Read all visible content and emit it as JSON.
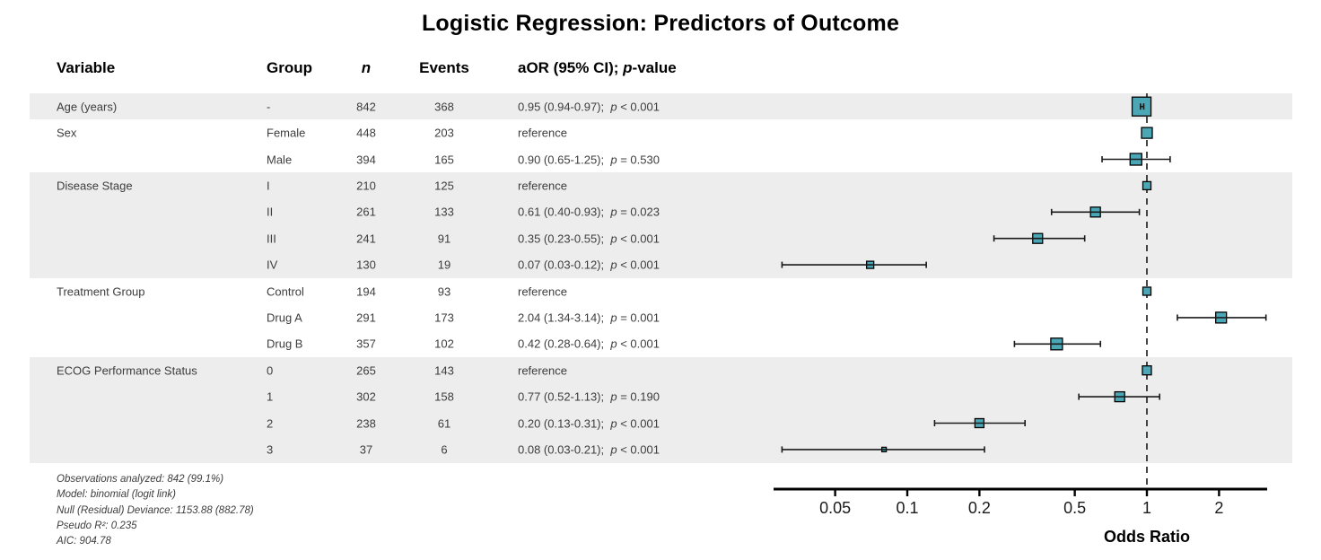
{
  "title": "Logistic Regression: Predictors of Outcome",
  "colors": {
    "marker_fill": "#4ba6b6",
    "marker_stroke": "#000000",
    "errorbar": "#1a1a1a",
    "ref_line": "#1a1a1a",
    "band": "#ededed",
    "axis": "#000000",
    "text": "#3d3d3d"
  },
  "table_headers": {
    "variable": "Variable",
    "group": "Group",
    "n": "n",
    "events": "Events",
    "aor_prefix": "aOR (95% CI); ",
    "aor_p_italic": "p",
    "aor_suffix": "-value"
  },
  "axis": {
    "label": "Odds Ratio",
    "tick_labels": [
      "0.05",
      "0.1",
      "0.2",
      "0.5",
      "1",
      "2"
    ]
  },
  "footnotes": [
    "Observations analyzed: 842 (99.1%)",
    "Model: binomial (logit link)",
    "Null (Residual) Deviance: 1153.88 (882.78)",
    "Pseudo R²: 0.235",
    "AIC: 904.78"
  ],
  "chart_data": {
    "type": "scatter",
    "subtype": "forest-plot",
    "title": "Logistic Regression: Predictors of Outcome",
    "xlabel": "Odds Ratio",
    "xscale": "log",
    "xlim": [
      0.028,
      3.3
    ],
    "xticks": [
      0.05,
      0.1,
      0.2,
      0.5,
      1,
      2
    ],
    "reference_line": 1,
    "legend": "none",
    "rows": [
      {
        "variable": "Age (years)",
        "group": "-",
        "n": 842,
        "events": 368,
        "or": 0.95,
        "ci_low": 0.94,
        "ci_high": 0.97,
        "est": "0.95 (0.94-0.97);",
        "p": "p < 0.001",
        "reference": false,
        "shaded": true,
        "marker_size": 21
      },
      {
        "variable": "Sex",
        "group": "Female",
        "n": 448,
        "events": 203,
        "or": 1,
        "est": "reference",
        "p": "",
        "reference": true,
        "shaded": false,
        "marker_size": 12
      },
      {
        "variable": "",
        "group": "Male",
        "n": 394,
        "events": 165,
        "or": 0.9,
        "ci_low": 0.65,
        "ci_high": 1.25,
        "est": "0.90 (0.65-1.25);",
        "p": "p = 0.530",
        "reference": false,
        "shaded": false,
        "marker_size": 13
      },
      {
        "variable": "Disease Stage",
        "group": "I",
        "n": 210,
        "events": 125,
        "or": 1,
        "est": "reference",
        "p": "",
        "reference": true,
        "shaded": true,
        "marker_size": 9
      },
      {
        "variable": "",
        "group": "II",
        "n": 261,
        "events": 133,
        "or": 0.61,
        "ci_low": 0.4,
        "ci_high": 0.93,
        "est": "0.61 (0.40-0.93);",
        "p": "p = 0.023",
        "reference": false,
        "shaded": true,
        "marker_size": 11
      },
      {
        "variable": "",
        "group": "III",
        "n": 241,
        "events": 91,
        "or": 0.35,
        "ci_low": 0.23,
        "ci_high": 0.55,
        "est": "0.35 (0.23-0.55);",
        "p": "p < 0.001",
        "reference": false,
        "shaded": true,
        "marker_size": 11
      },
      {
        "variable": "",
        "group": "IV",
        "n": 130,
        "events": 19,
        "or": 0.07,
        "ci_low": 0.03,
        "ci_high": 0.12,
        "est": "0.07 (0.03-0.12);",
        "p": "p < 0.001",
        "reference": false,
        "shaded": true,
        "marker_size": 8
      },
      {
        "variable": "Treatment Group",
        "group": "Control",
        "n": 194,
        "events": 93,
        "or": 1,
        "est": "reference",
        "p": "",
        "reference": true,
        "shaded": false,
        "marker_size": 9
      },
      {
        "variable": "",
        "group": "Drug A",
        "n": 291,
        "events": 173,
        "or": 2.04,
        "ci_low": 1.34,
        "ci_high": 3.14,
        "est": "2.04 (1.34-3.14);",
        "p": "p = 0.001",
        "reference": false,
        "shaded": false,
        "marker_size": 12
      },
      {
        "variable": "",
        "group": "Drug B",
        "n": 357,
        "events": 102,
        "or": 0.42,
        "ci_low": 0.28,
        "ci_high": 0.64,
        "est": "0.42 (0.28-0.64);",
        "p": "p < 0.001",
        "reference": false,
        "shaded": false,
        "marker_size": 13
      },
      {
        "variable": "ECOG Performance Status",
        "group": "0",
        "n": 265,
        "events": 143,
        "or": 1,
        "est": "reference",
        "p": "",
        "reference": true,
        "shaded": true,
        "marker_size": 10
      },
      {
        "variable": "",
        "group": "1",
        "n": 302,
        "events": 158,
        "or": 0.77,
        "ci_low": 0.52,
        "ci_high": 1.13,
        "est": "0.77 (0.52-1.13);",
        "p": "p = 0.190",
        "reference": false,
        "shaded": true,
        "marker_size": 11
      },
      {
        "variable": "",
        "group": "2",
        "n": 238,
        "events": 61,
        "or": 0.2,
        "ci_low": 0.13,
        "ci_high": 0.31,
        "est": "0.20 (0.13-0.31);",
        "p": "p < 0.001",
        "reference": false,
        "shaded": true,
        "marker_size": 10
      },
      {
        "variable": "",
        "group": "3",
        "n": 37,
        "events": 6,
        "or": 0.08,
        "ci_low": 0.03,
        "ci_high": 0.21,
        "est": "0.08 (0.03-0.21);",
        "p": "p < 0.001",
        "reference": false,
        "shaded": true,
        "marker_size": 5
      }
    ]
  }
}
